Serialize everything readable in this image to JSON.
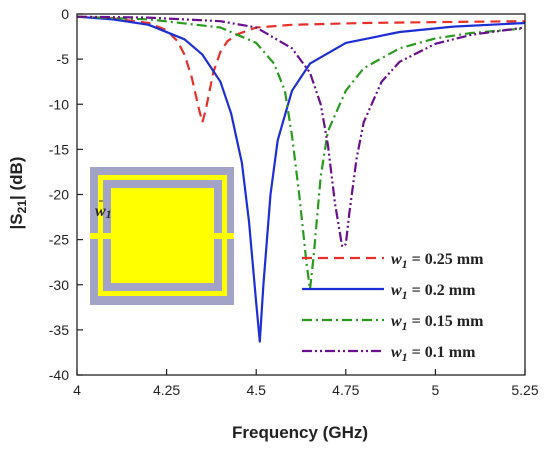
{
  "chart_data": {
    "type": "line",
    "xlabel": "Frequency (GHz)",
    "ylabel_main": "|S",
    "ylabel_sub": "21",
    "ylabel_tail": "| (dB)",
    "xlim": [
      4,
      5.25
    ],
    "ylim": [
      -40,
      0
    ],
    "x_ticks": [
      4,
      4.25,
      4.5,
      4.75,
      5,
      5.25
    ],
    "x_tick_labels": [
      "4",
      "4.25",
      "4.5",
      "4.75",
      "5",
      "5.25"
    ],
    "y_ticks": [
      0,
      -5,
      -10,
      -15,
      -20,
      -25,
      -30,
      -35,
      -40
    ],
    "y_tick_labels": [
      "0",
      "-5",
      "-10",
      "-15",
      "-20",
      "-25",
      "-30",
      "-35",
      "-40"
    ],
    "grid": false,
    "legend_position": "bottom-right",
    "legend_label_symbol": "w",
    "legend_label_sub": "1",
    "inset_label_symbol": "w",
    "inset_label_sub": "1",
    "series": [
      {
        "legend_value": " = 0.25 mm",
        "color": "#e8302a",
        "dash": "dash",
        "x": [
          4.0,
          4.1,
          4.2,
          4.25,
          4.28,
          4.3,
          4.32,
          4.34,
          4.35,
          4.36,
          4.38,
          4.4,
          4.42,
          4.45,
          4.5,
          4.6,
          4.8,
          5.0,
          5.25
        ],
        "y": [
          -0.3,
          -0.5,
          -1.0,
          -1.8,
          -3.0,
          -4.5,
          -7.0,
          -10.5,
          -12.0,
          -10.5,
          -6.5,
          -4.2,
          -3.0,
          -2.2,
          -1.5,
          -1.2,
          -1.0,
          -0.9,
          -0.8
        ]
      },
      {
        "legend_value": " = 0.2 mm",
        "color": "#1d2fd4",
        "dash": "solid",
        "x": [
          4.0,
          4.1,
          4.2,
          4.3,
          4.35,
          4.4,
          4.43,
          4.46,
          4.48,
          4.5,
          4.51,
          4.52,
          4.54,
          4.56,
          4.6,
          4.65,
          4.75,
          4.9,
          5.05,
          5.25
        ],
        "y": [
          -0.3,
          -0.6,
          -1.2,
          -2.8,
          -4.5,
          -7.5,
          -11.0,
          -16.5,
          -23.0,
          -32.0,
          -36.3,
          -30.0,
          -20.0,
          -14.0,
          -8.5,
          -5.5,
          -3.2,
          -2.0,
          -1.4,
          -1.0
        ]
      },
      {
        "legend_value": " = 0.15 mm",
        "color": "#2a9a1e",
        "dash": "dashdot",
        "x": [
          4.0,
          4.2,
          4.4,
          4.5,
          4.55,
          4.58,
          4.6,
          4.62,
          4.64,
          4.65,
          4.66,
          4.68,
          4.7,
          4.75,
          4.8,
          4.9,
          5.0,
          5.1,
          5.25
        ],
        "y": [
          -0.3,
          -0.6,
          -1.5,
          -3.2,
          -5.5,
          -8.5,
          -13.5,
          -20.0,
          -27.5,
          -30.5,
          -27.0,
          -18.0,
          -13.0,
          -8.5,
          -6.0,
          -3.8,
          -2.7,
          -2.1,
          -1.6
        ]
      },
      {
        "legend_value": " = 0.1 mm",
        "color": "#6a0f8e",
        "dash": "dashdotdot",
        "x": [
          4.0,
          4.2,
          4.4,
          4.5,
          4.6,
          4.65,
          4.68,
          4.7,
          4.72,
          4.74,
          4.75,
          4.76,
          4.78,
          4.8,
          4.85,
          4.9,
          5.0,
          5.1,
          5.25
        ],
        "y": [
          -0.3,
          -0.4,
          -0.8,
          -1.5,
          -3.8,
          -6.5,
          -10.0,
          -14.5,
          -21.0,
          -25.8,
          -25.5,
          -22.0,
          -16.0,
          -12.0,
          -7.5,
          -5.3,
          -3.3,
          -2.3,
          -1.5
        ]
      }
    ]
  }
}
